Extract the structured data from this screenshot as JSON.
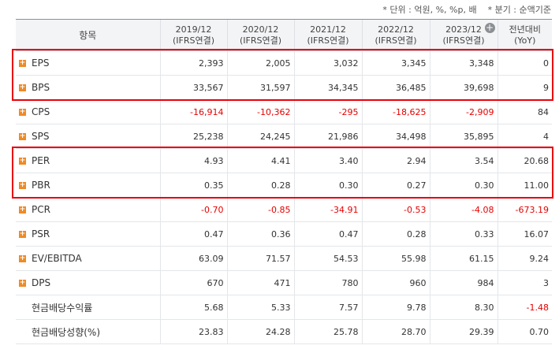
{
  "notes": [
    "* 단위 : 억원, %, %p, 배",
    "* 분기 : 순액기준"
  ],
  "table": {
    "header": {
      "item": "항목",
      "periods": [
        {
          "period": "2019/12",
          "basis": "(IFRS연결)"
        },
        {
          "period": "2020/12",
          "basis": "(IFRS연결)"
        },
        {
          "period": "2021/12",
          "basis": "(IFRS연결)"
        },
        {
          "period": "2022/12",
          "basis": "(IFRS연결)"
        },
        {
          "period": "2023/12",
          "basis": "(IFRS연결)"
        }
      ],
      "yoy": {
        "title": "전년대비",
        "sub": "(YoY)"
      }
    },
    "rows": [
      {
        "label": "EPS",
        "expandable": true,
        "highlighted": true,
        "values": [
          "2,393",
          "2,005",
          "3,032",
          "3,345",
          "3,348",
          "0"
        ]
      },
      {
        "label": "BPS",
        "expandable": true,
        "highlighted": true,
        "values": [
          "33,567",
          "31,597",
          "34,345",
          "36,485",
          "39,698",
          "9"
        ]
      },
      {
        "label": "CPS",
        "expandable": true,
        "highlighted": false,
        "values": [
          "-16,914",
          "-10,362",
          "-295",
          "-18,625",
          "-2,909",
          "84"
        ]
      },
      {
        "label": "SPS",
        "expandable": true,
        "highlighted": false,
        "values": [
          "25,238",
          "24,245",
          "21,986",
          "34,498",
          "35,895",
          "4"
        ]
      },
      {
        "label": "PER",
        "expandable": true,
        "highlighted": true,
        "values": [
          "4.93",
          "4.41",
          "3.40",
          "2.94",
          "3.54",
          "20.68"
        ]
      },
      {
        "label": "PBR",
        "expandable": true,
        "highlighted": true,
        "values": [
          "0.35",
          "0.28",
          "0.30",
          "0.27",
          "0.30",
          "11.00"
        ]
      },
      {
        "label": "PCR",
        "expandable": true,
        "highlighted": false,
        "values": [
          "-0.70",
          "-0.85",
          "-34.91",
          "-0.53",
          "-4.08",
          "-673.19"
        ]
      },
      {
        "label": "PSR",
        "expandable": true,
        "highlighted": false,
        "values": [
          "0.47",
          "0.36",
          "0.47",
          "0.28",
          "0.33",
          "16.07"
        ]
      },
      {
        "label": "EV/EBITDA",
        "expandable": true,
        "highlighted": false,
        "values": [
          "63.09",
          "71.57",
          "54.53",
          "55.98",
          "61.15",
          "9.24"
        ]
      },
      {
        "label": "DPS",
        "expandable": true,
        "highlighted": false,
        "values": [
          "670",
          "471",
          "780",
          "960",
          "984",
          "3"
        ]
      },
      {
        "label": "현금배당수익률",
        "expandable": false,
        "highlighted": false,
        "values": [
          "5.68",
          "5.33",
          "7.57",
          "9.78",
          "8.30",
          "-1.48"
        ]
      },
      {
        "label": "현금배당성향(%)",
        "expandable": false,
        "highlighted": false,
        "values": [
          "23.83",
          "24.28",
          "25.78",
          "28.70",
          "29.39",
          "0.70"
        ]
      }
    ]
  }
}
